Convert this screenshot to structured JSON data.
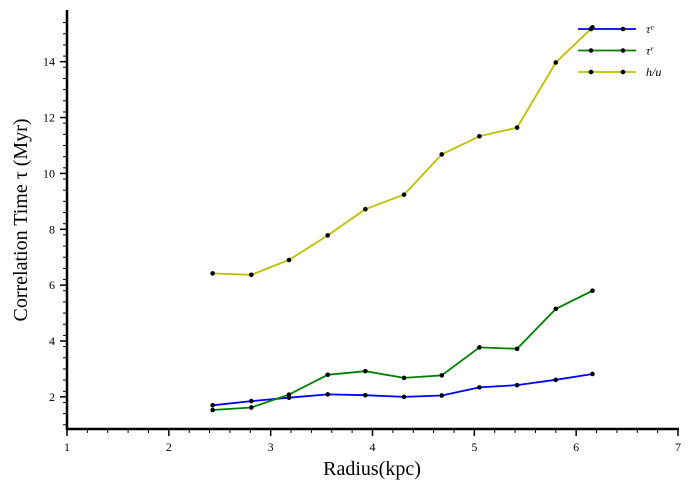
{
  "chart_data": {
    "type": "line",
    "xlabel": "Radius(kpc)",
    "ylabel": "Correlation Time τ (Myr)",
    "xlim": [
      1,
      7
    ],
    "ylim": [
      0.85,
      15.85
    ],
    "xticks": [
      1,
      2,
      3,
      4,
      5,
      6,
      7
    ],
    "xtick_labels": [
      "1",
      "2",
      "3",
      "4",
      "5",
      "6",
      "7"
    ],
    "yticks": [
      2,
      4,
      6,
      8,
      10,
      12,
      14
    ],
    "ytick_labels": [
      "2",
      "4",
      "6",
      "8",
      "10",
      "12",
      "14"
    ],
    "legend_position": "top-right",
    "grid": false,
    "series": [
      {
        "name": "τᵉ",
        "color": "#0000ff",
        "x": [
          2.43,
          2.81,
          3.18,
          3.56,
          3.93,
          4.31,
          4.68,
          5.05,
          5.42,
          5.8,
          6.16
        ],
        "values": [
          1.7,
          1.85,
          1.97,
          2.09,
          2.06,
          2.0,
          2.05,
          2.34,
          2.42,
          2.61,
          2.82
        ]
      },
      {
        "name": "τʳ",
        "color": "#008000",
        "x": [
          2.43,
          2.81,
          3.18,
          3.56,
          3.93,
          4.31,
          4.68,
          5.05,
          5.42,
          5.8,
          6.16
        ],
        "values": [
          1.53,
          1.62,
          2.08,
          2.79,
          2.92,
          2.68,
          2.77,
          3.77,
          3.72,
          5.15,
          5.8
        ]
      },
      {
        "name": "h/u",
        "color": "#bfbf00",
        "x": [
          2.43,
          2.81,
          3.18,
          3.56,
          3.93,
          4.31,
          4.68,
          5.05,
          5.42,
          5.8,
          6.16
        ],
        "values": [
          6.42,
          6.37,
          6.9,
          7.78,
          8.72,
          9.24,
          10.68,
          11.33,
          11.64,
          13.97,
          15.23
        ]
      }
    ]
  }
}
